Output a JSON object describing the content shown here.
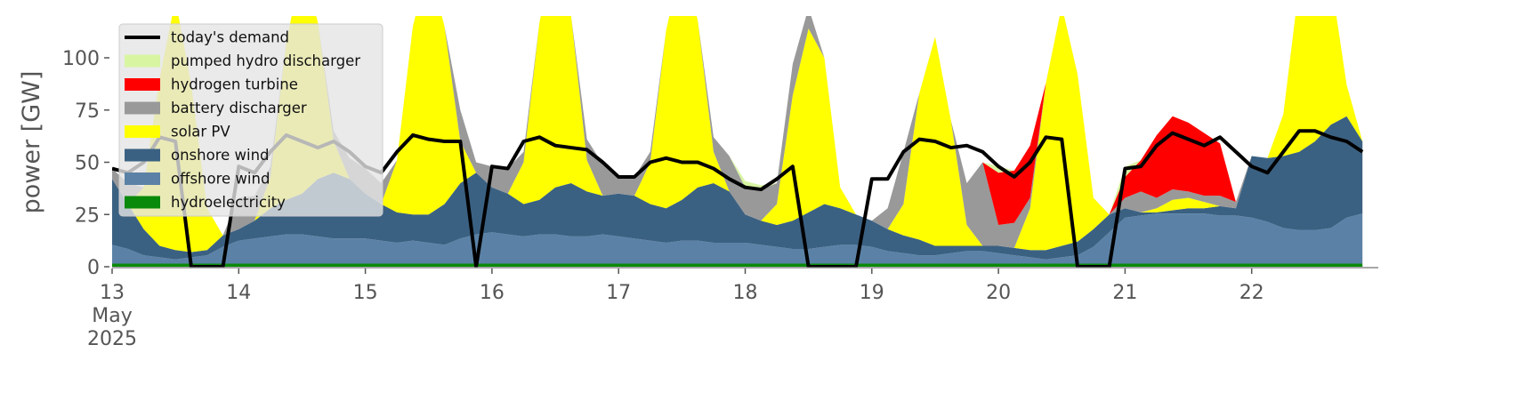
{
  "chart_data": {
    "type": "area",
    "ylabel": "power [GW]",
    "xlim": [
      13,
      23
    ],
    "ylim": [
      0,
      120
    ],
    "xticks": [
      {
        "value": 13,
        "label": "13\nMay\n2025"
      },
      14,
      15,
      16,
      17,
      18,
      19,
      20,
      21,
      22
    ],
    "yticks": [
      0,
      25,
      50,
      75,
      100
    ],
    "legend": "upper left",
    "x": [
      13,
      13.125,
      13.25,
      13.375,
      13.5,
      13.625,
      13.75,
      13.875,
      14,
      14.125,
      14.25,
      14.375,
      14.5,
      14.625,
      14.75,
      14.875,
      15,
      15.125,
      15.25,
      15.375,
      15.5,
      15.625,
      15.75,
      15.875,
      16,
      16.125,
      16.25,
      16.375,
      16.5,
      16.625,
      16.75,
      16.875,
      17,
      17.125,
      17.25,
      17.375,
      17.5,
      17.625,
      17.75,
      17.875,
      18,
      18.125,
      18.25,
      18.375,
      18.5,
      18.625,
      18.75,
      18.875,
      19,
      19.125,
      19.25,
      19.375,
      19.5,
      19.625,
      19.75,
      19.875,
      20,
      20.125,
      20.25,
      20.375,
      20.5,
      20.625,
      20.75,
      20.875,
      21,
      21.125,
      21.25,
      21.375,
      21.5,
      21.625,
      21.75,
      21.875,
      22,
      22.125,
      22.25,
      22.375,
      22.5,
      22.625,
      22.75,
      22.875
    ],
    "series": [
      {
        "name": "today's demand",
        "type": "line",
        "color": "#000000",
        "values": [
          47,
          45,
          50,
          62,
          60,
          0,
          0,
          0,
          48,
          45,
          55,
          63,
          60,
          57,
          60,
          55,
          48,
          45,
          55,
          63,
          61,
          60,
          60,
          0,
          48,
          47,
          60,
          62,
          58,
          57,
          56,
          50,
          43,
          43,
          50,
          52,
          50,
          50,
          47,
          42,
          38,
          37,
          42,
          48,
          0,
          0,
          0,
          0,
          42,
          42,
          55,
          61,
          60,
          57,
          58,
          55,
          48,
          43,
          50,
          62,
          61,
          0,
          0,
          0,
          47,
          48,
          58,
          64,
          61,
          58,
          62,
          55,
          48,
          45,
          55,
          65,
          65,
          62,
          60,
          55
        ]
      },
      {
        "name": "pumped hydro discharger",
        "type": "area",
        "color": "#d8f5a2",
        "values": [
          0,
          0,
          0,
          0,
          0,
          0,
          0,
          0,
          0,
          0,
          0,
          0,
          0,
          0,
          0,
          0,
          0,
          0,
          0,
          0,
          0,
          0,
          0,
          0,
          0,
          0,
          0,
          0,
          0,
          0,
          0,
          0,
          0,
          0,
          0,
          0,
          0,
          0,
          0,
          0,
          3,
          2,
          0,
          0,
          0,
          0,
          0,
          0,
          0,
          0,
          0,
          0,
          0,
          0,
          0,
          0,
          3,
          0,
          0,
          0,
          0,
          0,
          0,
          0,
          5,
          0,
          0,
          0,
          0,
          0,
          0,
          0,
          0,
          0,
          0,
          0,
          0,
          0,
          0,
          0
        ]
      },
      {
        "name": "hydrogen turbine",
        "type": "area",
        "color": "#ff0000",
        "values": [
          0,
          0,
          0,
          0,
          0,
          0,
          0,
          0,
          0,
          0,
          0,
          0,
          0,
          0,
          0,
          0,
          0,
          0,
          0,
          0,
          0,
          0,
          0,
          0,
          0,
          0,
          0,
          0,
          0,
          0,
          0,
          0,
          0,
          0,
          0,
          0,
          0,
          0,
          0,
          0,
          0,
          0,
          0,
          0,
          0,
          0,
          0,
          0,
          0,
          0,
          0,
          0,
          0,
          0,
          0,
          0,
          25,
          25,
          25,
          0,
          0,
          0,
          0,
          0,
          10,
          15,
          30,
          35,
          33,
          30,
          25,
          0,
          0,
          0,
          0,
          0,
          0,
          0,
          0,
          0
        ]
      },
      {
        "name": "battery discharger",
        "type": "area",
        "color": "#999999",
        "values": [
          5,
          10,
          0,
          0,
          0,
          0,
          0,
          0,
          15,
          12,
          5,
          0,
          0,
          0,
          5,
          10,
          12,
          10,
          0,
          0,
          0,
          0,
          15,
          5,
          10,
          12,
          5,
          0,
          0,
          0,
          10,
          15,
          8,
          9,
          5,
          0,
          0,
          0,
          7,
          17,
          13,
          15,
          10,
          15,
          10,
          0,
          0,
          0,
          0,
          10,
          25,
          0,
          0,
          0,
          20,
          40,
          10,
          12,
          5,
          0,
          0,
          0,
          0,
          0,
          5,
          10,
          5,
          5,
          3,
          3,
          5,
          3,
          0,
          0,
          0,
          0,
          0,
          0,
          0,
          0
        ]
      },
      {
        "name": "solar PV",
        "type": "area",
        "color": "#ffff00",
        "values": [
          0,
          0,
          20,
          80,
          120,
          80,
          20,
          0,
          0,
          0,
          15,
          75,
          110,
          75,
          15,
          0,
          0,
          0,
          25,
          90,
          120,
          85,
          20,
          0,
          0,
          0,
          20,
          85,
          115,
          80,
          15,
          0,
          0,
          0,
          20,
          85,
          115,
          80,
          15,
          0,
          0,
          0,
          10,
          60,
          88,
          70,
          10,
          0,
          0,
          0,
          15,
          70,
          100,
          60,
          10,
          0,
          0,
          0,
          20,
          80,
          115,
          80,
          15,
          0,
          0,
          0,
          2,
          5,
          5,
          3,
          0,
          0,
          0,
          0,
          20,
          80,
          110,
          70,
          15,
          0
        ]
      },
      {
        "name": "onshore wind",
        "type": "area",
        "color": "#3b6182",
        "values": [
          31.5,
          21.5,
          12.5,
          5.5,
          4.5,
          2.5,
          2.5,
          5.5,
          5.5,
          8.5,
          13.5,
          16.5,
          19.5,
          27.5,
          31.5,
          28.5,
          21.5,
          17.5,
          14.5,
          12.5,
          13.5,
          19.5,
          26.5,
          29.5,
          21.5,
          19.5,
          15.5,
          16.5,
          22.5,
          25.5,
          21.5,
          18.5,
          20.5,
          20.5,
          17.5,
          16.5,
          19.5,
          25.5,
          28.5,
          24.5,
          13.5,
          11.5,
          10.5,
          13.5,
          17.5,
          20.5,
          17.5,
          14.5,
          12.5,
          10.5,
          8.5,
          7.5,
          4.5,
          3.5,
          2.5,
          2.5,
          3.5,
          3.5,
          3.5,
          4.5,
          5.5,
          6.5,
          8.5,
          8.5,
          4.5,
          1.5,
          0.5,
          1.5,
          2.5,
          2.5,
          4.5,
          3.5,
          29.5,
          30.5,
          34.5,
          37.5,
          42.5,
          49.5,
          48.5,
          34.5
        ]
      },
      {
        "name": "offshore wind",
        "type": "area",
        "color": "#5b82a6",
        "values": [
          9,
          7,
          4,
          3,
          2,
          3,
          4,
          8,
          11,
          12,
          13,
          14,
          14,
          13,
          12,
          12,
          12,
          11,
          10,
          11,
          10,
          9,
          12,
          14,
          15,
          14,
          13,
          14,
          14,
          13,
          13,
          14,
          13,
          12,
          11,
          10,
          11,
          11,
          10,
          10,
          10,
          9,
          8,
          7,
          7,
          8,
          9,
          9,
          8,
          6,
          5,
          4,
          4,
          5,
          6,
          6,
          5,
          4,
          3,
          2,
          3,
          4,
          8,
          15,
          22,
          23,
          24,
          24,
          24,
          24,
          23,
          23,
          22,
          20,
          17,
          16,
          16,
          17,
          22,
          24
        ]
      },
      {
        "name": "hydroelectricity",
        "type": "area",
        "color": "#0a8a0a",
        "values": [
          1.5,
          1.5,
          1.5,
          1.5,
          1.5,
          1.5,
          1.5,
          1.5,
          1.5,
          1.5,
          1.5,
          1.5,
          1.5,
          1.5,
          1.5,
          1.5,
          1.5,
          1.5,
          1.5,
          1.5,
          1.5,
          1.5,
          1.5,
          1.5,
          1.5,
          1.5,
          1.5,
          1.5,
          1.5,
          1.5,
          1.5,
          1.5,
          1.5,
          1.5,
          1.5,
          1.5,
          1.5,
          1.5,
          1.5,
          1.5,
          1.5,
          1.5,
          1.5,
          1.5,
          1.5,
          1.5,
          1.5,
          1.5,
          1.5,
          1.5,
          1.5,
          1.5,
          1.5,
          1.5,
          1.5,
          1.5,
          1.5,
          1.5,
          1.5,
          1.5,
          1.5,
          1.5,
          1.5,
          1.5,
          1.5,
          1.5,
          1.5,
          1.5,
          1.5,
          1.5,
          1.5,
          1.5,
          1.5,
          1.5,
          1.5,
          1.5,
          1.5,
          1.5,
          1.5,
          1.5
        ]
      }
    ]
  }
}
